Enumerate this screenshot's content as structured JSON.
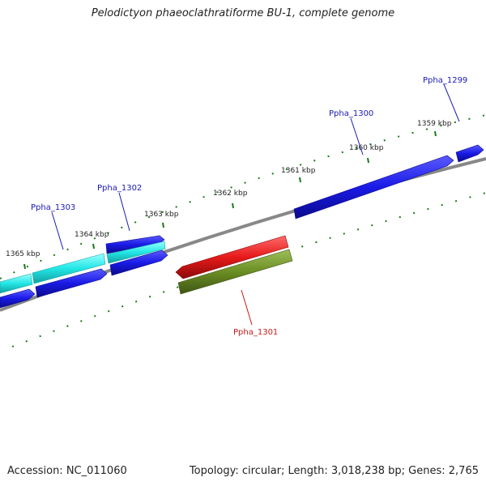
{
  "title": "Pelodictyon phaeoclathratiforme BU-1, complete genome",
  "accession": "Accession: NC_011060",
  "topology": "Topology: circular; Length: 3,018,238 bp; Genes: 2,765",
  "tick_labels": [
    "1365 kbp",
    "1364 kbp",
    "1363 kbp",
    "1362 kbp",
    "1361 kbp",
    "1360 kbp",
    "1359 kbp"
  ],
  "gene_labels": {
    "ppha_1299": "Ppha_1299",
    "ppha_1300": "Ppha_1300",
    "ppha_1301": "Ppha_1301",
    "ppha_1302": "Ppha_1302",
    "ppha_1303": "Ppha_1303"
  },
  "colors": {
    "blue": "#1a1ae6",
    "cyan": "#22e6e6",
    "red": "#e61a1a",
    "olive": "#6b8e23",
    "backbone": "#888888",
    "tick": "#1a7a1a",
    "label_blue": "#1a1ab4",
    "label_red": "#c81a1a"
  }
}
